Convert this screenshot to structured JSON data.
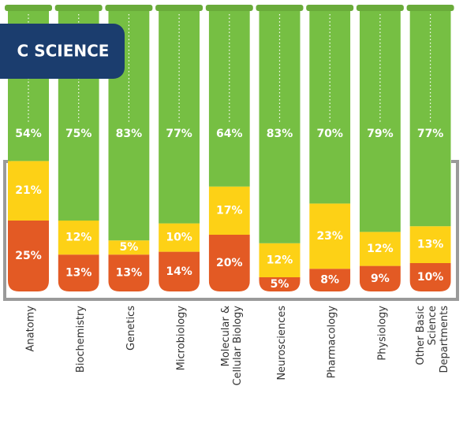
{
  "chart_data": {
    "type": "stacked-bar",
    "title": "C SCIENCE",
    "categories": [
      [
        "Anatomy"
      ],
      [
        "Biochemistry"
      ],
      [
        "Genetics"
      ],
      [
        "Microbiology"
      ],
      [
        "Molecular &",
        "Cellular Biology"
      ],
      [
        "Neurosciences"
      ],
      [
        "Pharmacology"
      ],
      [
        "Physiology"
      ],
      [
        "Other Basic",
        "Science",
        "Departments"
      ]
    ],
    "ylim": [
      0,
      100
    ],
    "series": [
      {
        "color": "#e35a24",
        "values": [
          25,
          13,
          13,
          14,
          20,
          5,
          8,
          9,
          10
        ],
        "value_labels": [
          "25%",
          "13%",
          "13%",
          "14%",
          "20%",
          "5%",
          "8%",
          "9%",
          "10%"
        ]
      },
      {
        "color": "#fdd116",
        "values": [
          21,
          12,
          5,
          10,
          17,
          12,
          23,
          12,
          13
        ],
        "value_labels": [
          "21%",
          "12%",
          "5%",
          "10%",
          "17%",
          "12%",
          "23%",
          "12%",
          "13%"
        ]
      },
      {
        "color": "#76bf43",
        "values": [
          54,
          75,
          83,
          77,
          64,
          83,
          70,
          79,
          77
        ],
        "value_labels": [
          "54%",
          "75%",
          "83%",
          "77%",
          "64%",
          "83%",
          "70%",
          "79%",
          "77%"
        ]
      }
    ]
  }
}
